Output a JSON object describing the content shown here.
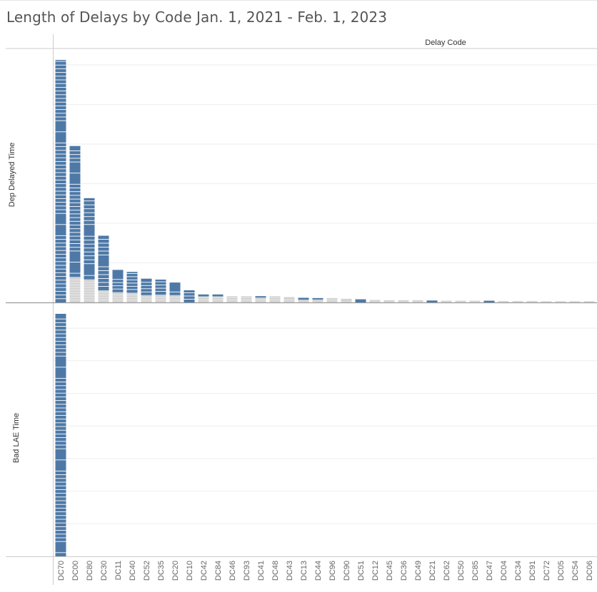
{
  "page": {
    "title": "Length of Delays by Code Jan. 1, 2021 - Feb. 1, 2023"
  },
  "colors": {
    "bar_blue": "#4e79a7",
    "bar_gray": "#d3d3d3",
    "gridline": "#eeeeee",
    "axis": "#cccccc",
    "text": "#333333",
    "label": "#666666"
  },
  "chart_data": {
    "type": "bar",
    "title": "Length of Delays by Code Jan. 1, 2021 - Feb. 1, 2023",
    "column_header": "Delay Code",
    "categories": [
      "DC70",
      "DC00",
      "DC80",
      "DC30",
      "DC11",
      "DC40",
      "DC52",
      "DC35",
      "DC20",
      "DC10",
      "DC42",
      "DC84",
      "DC46",
      "DC93",
      "DC41",
      "DC48",
      "DC43",
      "DC13",
      "DC44",
      "DC96",
      "DC90",
      "DC51",
      "DC12",
      "DC45",
      "DC36",
      "DC49",
      "DC21",
      "DC62",
      "DC50",
      "DC85",
      "DC47",
      "DC04",
      "DC34",
      "DC91",
      "DC72",
      "DC05",
      "DC54",
      "DC06"
    ],
    "panels": [
      {
        "ylabel": "Dep Delayed Time",
        "ylim": [
          0,
          100
        ],
        "grid": true,
        "values": [
          100,
          54.0,
          33.5,
          22.5,
          9.2,
          8.6,
          6.8,
          6.2,
          5.2,
          5.0,
          3.3,
          3.3,
          2.6,
          2.6,
          2.6,
          2.6,
          2.2,
          1.9,
          1.8,
          1.8,
          1.5,
          1.3,
          1.0,
          0.9,
          0.9,
          0.9,
          0.8,
          0.7,
          0.7,
          0.7,
          0.7,
          0.6,
          0.6,
          0.6,
          0.5,
          0.5,
          0.5,
          0.5
        ],
        "blue_values": [
          100,
          54.0,
          33.5,
          22.5,
          9.2,
          8.6,
          6.8,
          6.2,
          5.2,
          5.0,
          0.8,
          0.8,
          0.0,
          0.0,
          0.6,
          0.0,
          0.0,
          0.8,
          0.6,
          0.0,
          0.0,
          1.3,
          0.0,
          0.0,
          0.0,
          0.0,
          0.8,
          0.0,
          0.0,
          0.0,
          0.7,
          0.0,
          0.0,
          0.0,
          0.0,
          0.0,
          0.0,
          0.0
        ],
        "gray_values": [
          0,
          10.5,
          9.5,
          5.0,
          4.2,
          4.0,
          3.0,
          3.2,
          3.0,
          0.0,
          2.5,
          2.5,
          2.6,
          2.6,
          2.0,
          2.6,
          2.2,
          1.1,
          1.2,
          1.8,
          1.5,
          0.0,
          1.0,
          0.9,
          0.9,
          0.9,
          0.0,
          0.7,
          0.7,
          0.7,
          0.0,
          0.6,
          0.6,
          0.6,
          0.5,
          0.5,
          0.5,
          0.5
        ]
      },
      {
        "ylabel": "Bad LAE Time",
        "ylim": [
          0,
          100
        ],
        "grid": true,
        "values": [
          100,
          0,
          0,
          0,
          0,
          0,
          0,
          0,
          0,
          0,
          0,
          0,
          0,
          0,
          0,
          0,
          0,
          0,
          0,
          0,
          0,
          0,
          0,
          0,
          0,
          0,
          0,
          0,
          0,
          0,
          0,
          0,
          0,
          0,
          0,
          0,
          0,
          0
        ],
        "blue_values": [
          100,
          0,
          0,
          0,
          0,
          0,
          0,
          0,
          0,
          0,
          0,
          0,
          0,
          0,
          0,
          0,
          0,
          0,
          0,
          0,
          0,
          0,
          0,
          0,
          0,
          0,
          0,
          0,
          0,
          0,
          0,
          0,
          0,
          0,
          0,
          0,
          0,
          0
        ],
        "gray_values": [
          0,
          0,
          0,
          0,
          0,
          0,
          0,
          0,
          0,
          0,
          0,
          0,
          0,
          0,
          0,
          0,
          0,
          0,
          0,
          0,
          0,
          0,
          0,
          0,
          0,
          0,
          0,
          0,
          0,
          0,
          0,
          0,
          0,
          0,
          0,
          0,
          0,
          0
        ]
      }
    ]
  }
}
